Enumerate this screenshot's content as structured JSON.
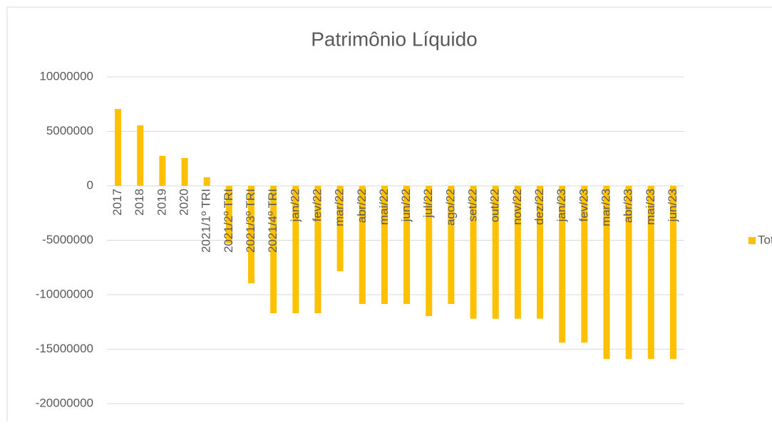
{
  "chart_data": {
    "type": "bar",
    "title": "Patrimônio Líquido",
    "categories": [
      "2017",
      "2018",
      "2019",
      "2020",
      "2021/1º TRI",
      "2021/2º TRI",
      "2021/3º TRI",
      "2021/4º TRI",
      "jan/22",
      "fev/22",
      "mar/22",
      "abr/22",
      "mai/22",
      "jun/22",
      "jul/22",
      "ago/22",
      "set/22",
      "out/22",
      "nov/22",
      "dez/22",
      "jan/23",
      "fev/23",
      "mar/23",
      "abr/23",
      "mai/23",
      "jun/23"
    ],
    "series": [
      {
        "name": "Total",
        "color": "#ffc000",
        "values": [
          7050000,
          5550000,
          2750000,
          2550000,
          780000,
          -5300000,
          -8950000,
          -11700000,
          -11700000,
          -11700000,
          -7840000,
          -10850000,
          -10850000,
          -10850000,
          -11960000,
          -10850000,
          -12200000,
          -12200000,
          -12200000,
          -12200000,
          -14400000,
          -14400000,
          -15900000,
          -15900000,
          -15900000,
          -15900000
        ]
      }
    ],
    "ylim": [
      -20000000,
      10000000
    ],
    "yticks": [
      -20000000,
      -15000000,
      -10000000,
      -5000000,
      0,
      5000000,
      10000000
    ],
    "grid": true,
    "legend": "right"
  }
}
